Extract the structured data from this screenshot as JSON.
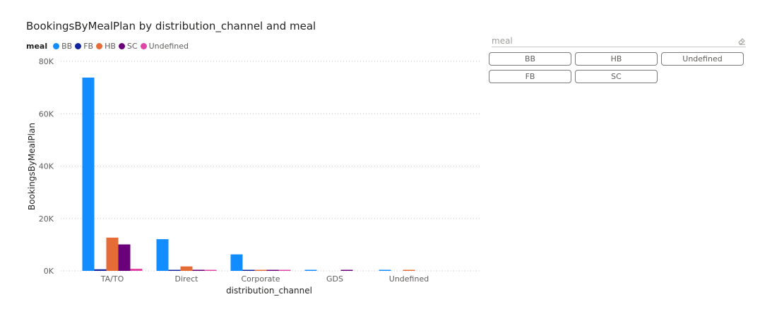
{
  "chart_data": {
    "type": "bar",
    "title": "BookingsByMealPlan by distribution_channel and meal",
    "xlabel": "distribution_channel",
    "ylabel": "BookingsByMealPlan",
    "ylim": [
      0,
      80000
    ],
    "yticks": [
      0,
      20000,
      40000,
      60000,
      80000
    ],
    "ytick_labels": [
      "0K",
      "20K",
      "40K",
      "60K",
      "80K"
    ],
    "grid": true,
    "legend_title": "meal",
    "legend_placement": "top-left",
    "categories": [
      "TA/TO",
      "Direct",
      "Corporate",
      "GDS",
      "Undefined"
    ],
    "series": [
      {
        "name": "BB",
        "color": "#118DFF",
        "values": [
          73800,
          12100,
          6300,
          190,
          220
        ]
      },
      {
        "name": "FB",
        "color": "#12239E",
        "values": [
          600,
          180,
          130,
          0,
          0
        ]
      },
      {
        "name": "HB",
        "color": "#E66C37",
        "values": [
          12700,
          1700,
          230,
          0,
          200
        ]
      },
      {
        "name": "SC",
        "color": "#6B007B",
        "values": [
          10100,
          420,
          200,
          170,
          0
        ]
      },
      {
        "name": "Undefined",
        "color": "#E044A7",
        "values": [
          800,
          150,
          100,
          0,
          0
        ]
      }
    ]
  },
  "slicer": {
    "title": "meal",
    "buttons": [
      "BB",
      "HB",
      "Undefined",
      "FB",
      "SC"
    ]
  }
}
